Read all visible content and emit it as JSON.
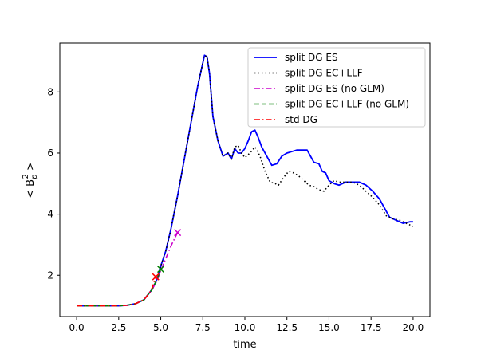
{
  "chart_data": {
    "type": "line",
    "title": "",
    "xlabel": "time",
    "ylabel": "< B_p^2 >",
    "xlim": [
      -1.0,
      21.0
    ],
    "ylim": [
      0.65,
      9.6
    ],
    "xticks": [
      0.0,
      2.5,
      5.0,
      7.5,
      10.0,
      12.5,
      15.0,
      17.5,
      20.0
    ],
    "xtick_labels": [
      "0.0",
      "2.5",
      "5.0",
      "7.5",
      "10.0",
      "12.5",
      "15.0",
      "17.5",
      "20.0"
    ],
    "yticks": [
      2,
      4,
      6,
      8
    ],
    "ytick_labels": [
      "2",
      "4",
      "6",
      "8"
    ],
    "grid": false,
    "legend_position": "top-right",
    "series": [
      {
        "name": "split DG ES",
        "color": "#0000ff",
        "dash": "solid",
        "end_marker": "",
        "x": [
          0,
          1,
          2,
          2.5,
          3,
          3.5,
          4,
          4.5,
          4.8,
          5,
          5.3,
          5.6,
          6,
          6.3,
          6.6,
          6.9,
          7.2,
          7.4,
          7.6,
          7.75,
          7.9,
          8.1,
          8.4,
          8.7,
          9.0,
          9.2,
          9.4,
          9.6,
          9.8,
          10.0,
          10.2,
          10.4,
          10.6,
          10.8,
          11.0,
          11.3,
          11.6,
          11.9,
          12.2,
          12.5,
          12.8,
          13.1,
          13.4,
          13.7,
          13.9,
          14.1,
          14.4,
          14.6,
          14.8,
          15.0,
          15.3,
          15.6,
          16.0,
          16.4,
          16.8,
          17.2,
          17.6,
          18.0,
          18.3,
          18.6,
          19.0,
          19.4,
          19.8,
          20.0
        ],
        "y": [
          1.0,
          1.0,
          1.0,
          1.0,
          1.02,
          1.07,
          1.2,
          1.55,
          1.9,
          2.3,
          2.8,
          3.5,
          4.6,
          5.5,
          6.4,
          7.3,
          8.2,
          8.7,
          9.2,
          9.15,
          8.6,
          7.2,
          6.4,
          5.9,
          6.0,
          5.8,
          6.15,
          6.0,
          6.0,
          6.15,
          6.4,
          6.7,
          6.75,
          6.5,
          6.2,
          5.9,
          5.6,
          5.65,
          5.9,
          6.0,
          6.05,
          6.1,
          6.1,
          6.1,
          5.9,
          5.7,
          5.65,
          5.4,
          5.35,
          5.1,
          5.0,
          4.95,
          5.05,
          5.05,
          5.05,
          4.95,
          4.75,
          4.5,
          4.2,
          3.9,
          3.8,
          3.7,
          3.75,
          3.75
        ]
      },
      {
        "name": "split DG EC+LLF",
        "color": "#000000",
        "dash": "dotted",
        "end_marker": "",
        "x": [
          0,
          1,
          2,
          2.5,
          3,
          3.5,
          4,
          4.5,
          4.8,
          5,
          5.3,
          5.6,
          6,
          6.3,
          6.6,
          6.9,
          7.2,
          7.4,
          7.6,
          7.75,
          7.9,
          8.1,
          8.4,
          8.7,
          9.0,
          9.2,
          9.4,
          9.6,
          9.8,
          10.0,
          10.3,
          10.6,
          10.9,
          11.2,
          11.5,
          11.8,
          12.0,
          12.3,
          12.6,
          12.9,
          13.2,
          13.5,
          13.8,
          14.1,
          14.4,
          14.7,
          15.0,
          15.3,
          15.6,
          16.0,
          16.4,
          16.8,
          17.2,
          17.6,
          18.0,
          18.4,
          18.8,
          19.2,
          19.6,
          20.0
        ],
        "y": [
          1.0,
          1.0,
          1.0,
          1.0,
          1.02,
          1.07,
          1.2,
          1.55,
          1.9,
          2.3,
          2.8,
          3.5,
          4.6,
          5.5,
          6.4,
          7.3,
          8.2,
          8.7,
          9.2,
          9.15,
          8.6,
          7.2,
          6.4,
          5.9,
          6.0,
          5.8,
          6.2,
          6.25,
          6.0,
          5.85,
          6.0,
          6.2,
          5.9,
          5.4,
          5.05,
          5.0,
          4.95,
          5.2,
          5.4,
          5.35,
          5.25,
          5.1,
          4.95,
          4.9,
          4.8,
          4.75,
          4.95,
          5.1,
          5.05,
          5.05,
          5.05,
          4.95,
          4.75,
          4.55,
          4.3,
          3.95,
          3.85,
          3.8,
          3.7,
          3.6
        ]
      },
      {
        "name": "split DG ES (no GLM)",
        "color": "#cc00cc",
        "dash": "dashdot",
        "end_marker": "x",
        "x": [
          0,
          1,
          2,
          2.5,
          3,
          3.5,
          4,
          4.5,
          4.8,
          5.0,
          5.3,
          5.6,
          6.0
        ],
        "y": [
          1.0,
          1.0,
          1.0,
          1.0,
          1.02,
          1.07,
          1.2,
          1.55,
          1.85,
          2.15,
          2.55,
          2.95,
          3.4
        ]
      },
      {
        "name": "split DG EC+LLF (no GLM)",
        "color": "#008000",
        "dash": "dashed",
        "end_marker": "x",
        "x": [
          0,
          1,
          2,
          2.5,
          3,
          3.5,
          4,
          4.5,
          4.8,
          5.0
        ],
        "y": [
          1.0,
          1.0,
          1.0,
          1.0,
          1.02,
          1.07,
          1.2,
          1.55,
          1.9,
          2.2
        ]
      },
      {
        "name": "std DG",
        "color": "#ff0000",
        "dash": "dashdot",
        "end_marker": "x",
        "x": [
          0,
          1,
          2,
          2.5,
          3,
          3.5,
          4,
          4.3,
          4.5,
          4.7
        ],
        "y": [
          1.0,
          1.0,
          1.0,
          1.0,
          1.02,
          1.07,
          1.2,
          1.4,
          1.6,
          1.95
        ]
      }
    ]
  }
}
